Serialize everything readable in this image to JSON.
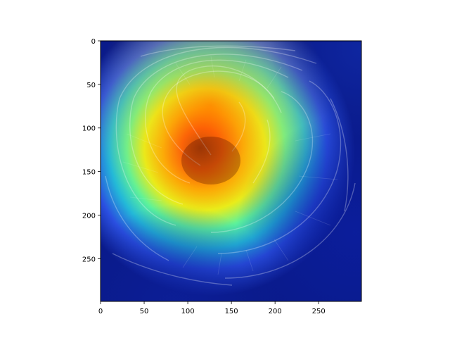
{
  "chart_data": {
    "type": "heatmap",
    "title": "",
    "xlabel": "",
    "ylabel": "",
    "description_style": "image with jet-colormap heatmap overlay",
    "xlim": [
      0,
      299
    ],
    "ylim": [
      299,
      0
    ],
    "x_ticks": [
      0,
      50,
      100,
      150,
      200,
      250
    ],
    "y_ticks": [
      0,
      50,
      100,
      150,
      200,
      250
    ],
    "x_tick_labels": [
      "0",
      "50",
      "100",
      "150",
      "200",
      "250"
    ],
    "y_tick_labels": [
      "0",
      "50",
      "100",
      "150",
      "200",
      "250"
    ],
    "grid": false,
    "colormap": "jet",
    "hotspot": {
      "x": 130,
      "y": 150
    },
    "colors": {
      "jet_dark_blue": "#00007f",
      "jet_blue": "#0000ff",
      "jet_cyan": "#00ffff",
      "jet_yellow": "#ffff00",
      "jet_red": "#ff0000",
      "jet_dark_red": "#7f0000"
    }
  }
}
